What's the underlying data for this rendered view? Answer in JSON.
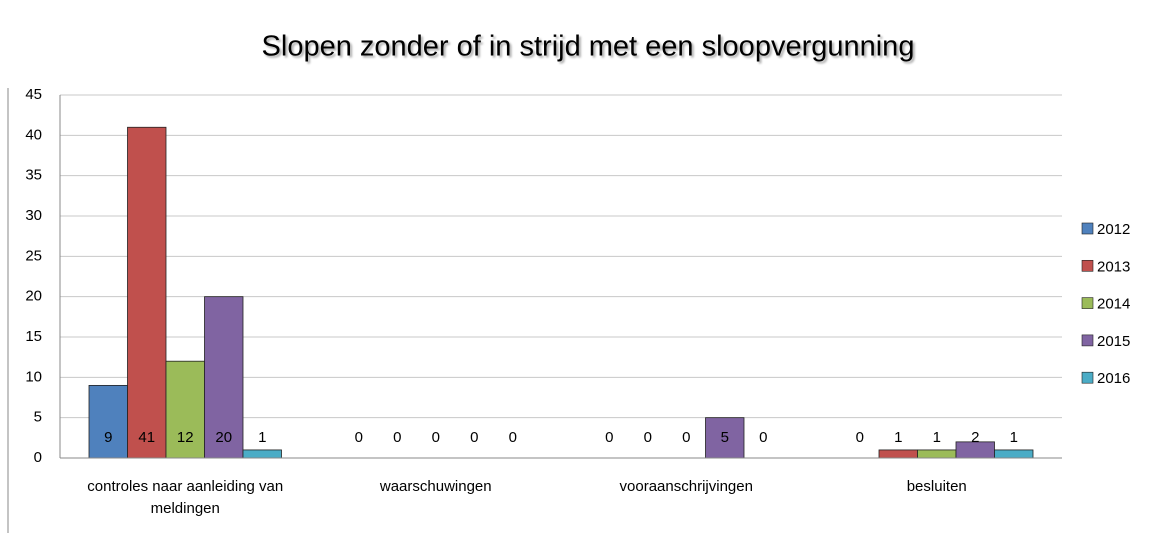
{
  "chart_data": {
    "type": "bar",
    "title": "Slopen zonder of in strijd met een sloopvergunning",
    "categories": [
      "controles naar aanleiding van meldingen",
      "waarschuwingen",
      "vooraanschrijvingen",
      "besluiten"
    ],
    "series": [
      {
        "name": "2012",
        "color": "#4f81bd",
        "values": [
          9,
          0,
          0,
          0
        ]
      },
      {
        "name": "2013",
        "color": "#c0504d",
        "values": [
          41,
          0,
          0,
          1
        ]
      },
      {
        "name": "2014",
        "color": "#9bbb59",
        "values": [
          12,
          0,
          0,
          1
        ]
      },
      {
        "name": "2015",
        "color": "#8064a2",
        "values": [
          20,
          0,
          5,
          2
        ]
      },
      {
        "name": "2016",
        "color": "#4bacc6",
        "values": [
          1,
          0,
          0,
          1
        ]
      }
    ],
    "ylim": [
      0,
      45
    ],
    "yticks": [
      0,
      5,
      10,
      15,
      20,
      25,
      30,
      35,
      40,
      45
    ],
    "grid": true,
    "legend": "right"
  }
}
